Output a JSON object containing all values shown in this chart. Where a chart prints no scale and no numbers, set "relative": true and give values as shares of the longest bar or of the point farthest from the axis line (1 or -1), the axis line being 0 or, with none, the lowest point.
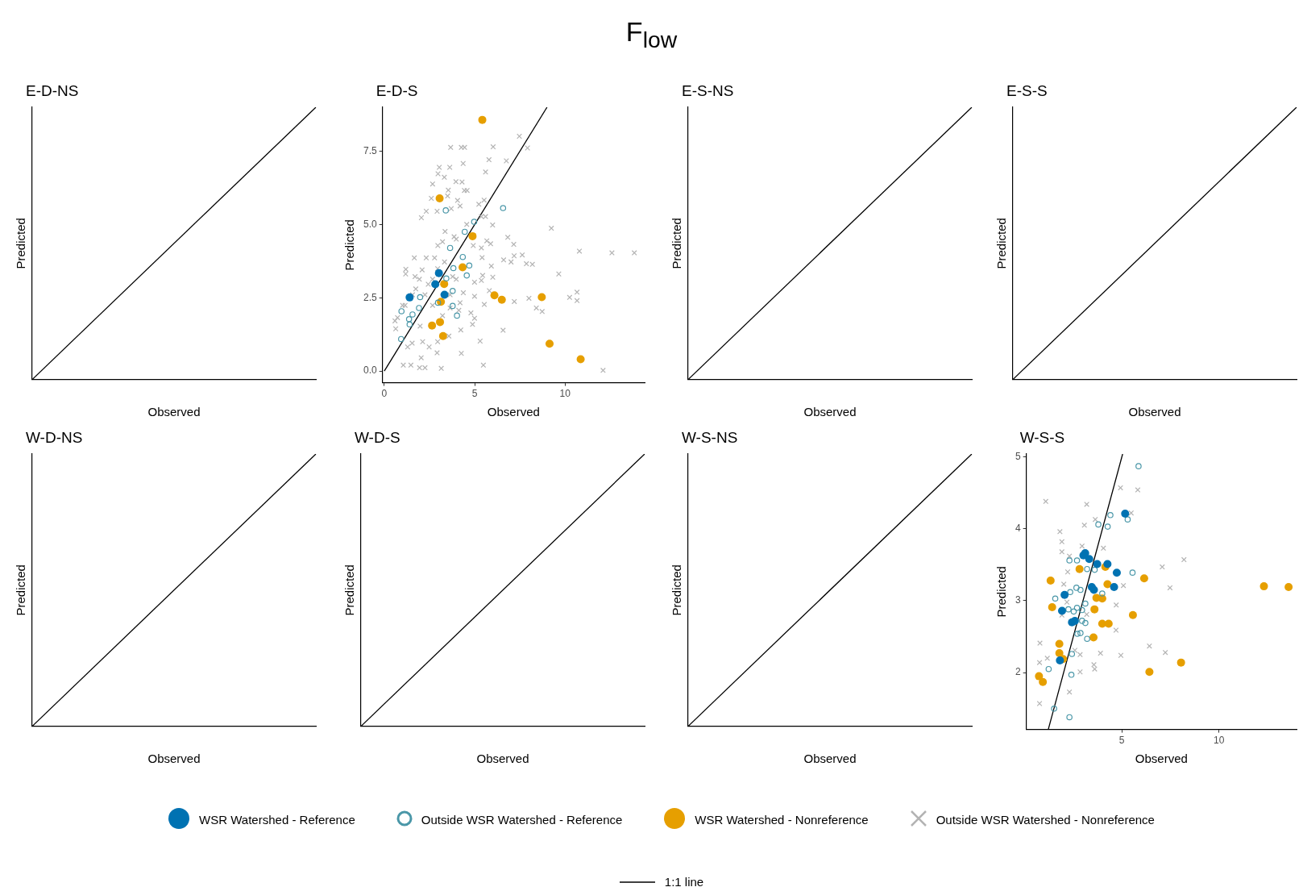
{
  "chart_data": [
    {
      "type": "line",
      "title": "E-D-NS",
      "xlabel": "Observed",
      "ylabel": "Predicted",
      "relative": true,
      "legend": "bottom",
      "annotations": [
        "F$_{low}$"
      ],
      "categories": [
        null,
        null
      ],
      "series": [
        {
          "name": "1:1 line",
          "color": "#000000",
          "marker": "none",
          "values": [
            0,
            1
          ]
        }
      ]
    },
    {
      "type": "scatter",
      "title": "E-D-S",
      "xlabel": "Observed",
      "ylabel": "Predicted",
      "legend": "bottom",
      "xlim": [
        -0.1,
        14.4
      ],
      "ylim": [
        -0.4,
        9.0
      ],
      "xticks": [
        0,
        5,
        10
      ],
      "yticks": [
        {
          "value": 0,
          "label": "0.0"
        },
        {
          "value": 2.5,
          "label": "2.5"
        },
        {
          "value": 5,
          "label": "5.0"
        },
        {
          "value": 7.5,
          "label": "7.5"
        }
      ],
      "series": [
        {
          "name": "WSR Watershed - Reference",
          "color": "#0072b2",
          "marker": "circle",
          "x": [
            1.4,
            3.02,
            2.82,
            3.33
          ],
          "values": [
            2.51,
            3.34,
            2.96,
            2.6
          ]
        },
        {
          "name": "Outside WSR Watershed - Reference",
          "color": "#4a97a8",
          "marker": "circle-open",
          "x": [
            3.4,
            6.57,
            4.97,
            4.45,
            3.64,
            4.34,
            4.7,
            3.82,
            4.56,
            3.43,
            1.98,
            0.95,
            1.56,
            1.37,
            1.92,
            0.93,
            3.78,
            3.78,
            4.02,
            2.97,
            1.4
          ],
          "values": [
            5.48,
            5.56,
            5.09,
            4.75,
            4.2,
            3.89,
            3.6,
            3.51,
            3.26,
            3.16,
            2.52,
            2.04,
            1.93,
            1.77,
            2.15,
            1.09,
            2.73,
            2.22,
            1.89,
            2.33,
            1.59
          ]
        },
        {
          "name": "WSR Watershed - Nonreference",
          "color": "#e69f00",
          "marker": "circle",
          "x": [
            5.42,
            3.06,
            4.88,
            4.33,
            3.31,
            3.13,
            6.09,
            6.5,
            8.71,
            2.64,
            3.08,
            3.25,
            9.14,
            10.86
          ],
          "values": [
            8.57,
            5.89,
            4.6,
            3.54,
            2.97,
            2.36,
            2.58,
            2.43,
            2.52,
            1.55,
            1.67,
            1.19,
            0.93,
            0.4
          ]
        },
        {
          "name": "Outside WSR Watershed - Nonreference",
          "color": "#b3b3b3",
          "marker": "cross",
          "x": [
            3.67,
            4.26,
            4.44,
            6.02,
            7.47,
            7.92,
            5.79,
            6.75,
            4.36,
            5.6,
            3.04,
            3.62,
            2.97,
            3.32,
            3.96,
            4.3,
            2.67,
            3.54,
            4.43,
            4.58,
            3.5,
            2.6,
            4.05,
            5.52,
            5.23,
            4.19,
            2.32,
            2.92,
            3.7,
            2.05,
            5.37,
            5.6,
            4.56,
            5.99,
            9.24,
            3.36,
            3.86,
            3.98,
            3.22,
            5.67,
            6.83,
            2.96,
            4.92,
            5.88,
            7.16,
            5.37,
            10.79,
            12.59,
            13.83,
            1.66,
            2.32,
            2.78,
            5.41,
            7.63,
            7.18,
            6.6,
            7.01,
            7.86,
            8.19,
            5.92,
            1.19,
            3.33,
            2.09,
            9.65,
            1.18,
            1.94,
            5.44,
            6.0,
            5.37,
            4.99,
            2.43,
            1.74,
            5.81,
            4.37,
            4.99,
            8.0,
            10.25,
            10.66,
            10.66,
            7.19,
            5.53,
            8.41,
            8.73,
            1.15,
            0.73,
            0.63,
            4.79,
            4.88,
            4.99,
            5.3,
            6.57,
            4.23,
            3.57,
            1.54,
            2.12,
            2.48,
            2.95,
            4.26,
            2.04,
            2.92,
            1.05,
            1.47,
            1.95,
            2.25,
            3.15,
            5.48,
            12.1,
            1.7,
            2.25,
            2.67,
            3.64,
            3.98,
            4.19,
            3.64,
            1.56,
            2.67,
            3.22,
            1.98,
            4.12,
            2.95,
            3.78,
            1.01,
            0.59,
            1.29
          ],
          "values": [
            7.63,
            7.63,
            7.63,
            7.65,
            8.01,
            7.61,
            7.21,
            7.17,
            7.08,
            6.79,
            6.95,
            6.95,
            6.73,
            6.61,
            6.46,
            6.45,
            6.38,
            6.17,
            6.16,
            6.16,
            5.97,
            5.89,
            5.82,
            5.83,
            5.69,
            5.63,
            5.45,
            5.45,
            5.54,
            5.23,
            5.27,
            5.27,
            5.0,
            4.98,
            4.87,
            4.76,
            4.58,
            4.5,
            4.41,
            4.44,
            4.56,
            4.28,
            4.28,
            4.34,
            4.32,
            4.2,
            4.09,
            4.03,
            4.03,
            3.86,
            3.86,
            3.86,
            3.87,
            3.96,
            3.93,
            3.79,
            3.72,
            3.66,
            3.64,
            3.58,
            3.47,
            3.72,
            3.45,
            3.31,
            3.31,
            3.13,
            3.26,
            3.2,
            3.09,
            3.03,
            2.96,
            2.8,
            2.74,
            2.67,
            2.55,
            2.48,
            2.51,
            2.69,
            2.4,
            2.37,
            2.27,
            2.15,
            2.03,
            2.24,
            1.82,
            1.44,
            1.98,
            1.59,
            1.8,
            1.02,
            1.39,
            1.4,
            1.19,
            0.95,
            1.0,
            0.82,
            1.0,
            0.6,
            0.45,
            0.62,
            0.2,
            0.2,
            0.11,
            0.11,
            0.09,
            0.2,
            0.02,
            3.22,
            2.6,
            3.13,
            2.6,
            3.13,
            2.33,
            2.15,
            2.6,
            2.24,
            1.89,
            1.53,
            2.07,
            3.49,
            3.22,
            2.24,
            1.71,
            0.82
          ]
        },
        {
          "name": "1:1 line",
          "type": "line",
          "color": "#000000",
          "marker": "none",
          "x": [
            0,
            9
          ],
          "values": [
            0,
            9
          ]
        }
      ]
    },
    {
      "type": "line",
      "title": "E-S-NS",
      "xlabel": "Observed",
      "ylabel": "Predicted",
      "relative": true,
      "legend": "bottom",
      "categories": [
        null,
        null
      ],
      "series": [
        {
          "name": "1:1 line",
          "color": "#000000",
          "marker": "none",
          "values": [
            0,
            1
          ]
        }
      ]
    },
    {
      "type": "line",
      "title": "E-S-S",
      "xlabel": "Observed",
      "ylabel": "Predicted",
      "relative": true,
      "legend": "bottom",
      "categories": [
        null,
        null
      ],
      "series": [
        {
          "name": "1:1 line",
          "color": "#000000",
          "marker": "none",
          "values": [
            0,
            1
          ]
        }
      ]
    },
    {
      "type": "line",
      "title": "W-D-NS",
      "xlabel": "Observed",
      "ylabel": "Predicted",
      "relative": true,
      "legend": "bottom",
      "categories": [
        null,
        null
      ],
      "series": [
        {
          "name": "1:1 line",
          "color": "#000000",
          "marker": "none",
          "values": [
            0,
            1
          ]
        }
      ]
    },
    {
      "type": "line",
      "title": "W-D-S",
      "xlabel": "Observed",
      "ylabel": "Predicted",
      "relative": true,
      "legend": "bottom",
      "categories": [
        null,
        null
      ],
      "series": [
        {
          "name": "1:1 line",
          "color": "#000000",
          "marker": "none",
          "values": [
            0,
            1
          ]
        }
      ]
    },
    {
      "type": "line",
      "title": "W-S-NS",
      "xlabel": "Observed",
      "ylabel": "Predicted",
      "relative": true,
      "legend": "bottom",
      "categories": [
        null,
        null
      ],
      "series": [
        {
          "name": "1:1 line",
          "color": "#000000",
          "marker": "none",
          "values": [
            0,
            1
          ]
        }
      ]
    },
    {
      "type": "scatter",
      "title": "W-S-S",
      "xlabel": "Observed",
      "ylabel": "Predicted",
      "legend": "bottom",
      "xlim": [
        0.08,
        14.0
      ],
      "ylim": [
        1.21,
        5.04
      ],
      "xticks": [
        5,
        10
      ],
      "yticks": [
        2,
        3,
        4,
        5
      ],
      "series": [
        {
          "name": "WSR Watershed - Reference",
          "color": "#0072b2",
          "marker": "circle",
          "x": [
            5.17,
            3.11,
            3.02,
            3.32,
            3.73,
            4.26,
            4.74,
            3.45,
            3.56,
            4.6,
            2.05,
            1.92,
            2.43,
            2.58,
            1.81
          ],
          "values": [
            4.21,
            3.66,
            3.63,
            3.58,
            3.51,
            3.51,
            3.39,
            3.19,
            3.15,
            3.19,
            3.08,
            2.86,
            2.7,
            2.72,
            2.17
          ]
        },
        {
          "name": "Outside WSR Watershed - Reference",
          "color": "#4a97a8",
          "marker": "circle-open",
          "x": [
            5.86,
            5.3,
            4.41,
            3.79,
            4.27,
            5.55,
            2.3,
            2.69,
            3.21,
            3.6,
            2.34,
            2.66,
            2.87,
            1.57,
            3.99,
            3.12,
            2.25,
            2.69,
            2.52,
            2.95,
            3.12,
            2.95,
            2.71,
            2.87,
            3.21,
            2.43,
            1.23,
            2.4,
            1.51,
            2.3
          ],
          "values": [
            4.87,
            4.13,
            4.19,
            4.06,
            4.03,
            3.39,
            3.56,
            3.56,
            3.44,
            3.43,
            3.12,
            3.18,
            3.15,
            3.03,
            3.1,
            2.96,
            2.88,
            2.9,
            2.85,
            2.87,
            2.69,
            2.72,
            2.54,
            2.55,
            2.47,
            2.26,
            2.05,
            1.97,
            1.5,
            1.38
          ]
        },
        {
          "name": "WSR Watershed - Nonreference",
          "color": "#e69f00",
          "marker": "circle",
          "x": [
            12.32,
            13.59,
            1.33,
            2.82,
            4.15,
            6.15,
            4.26,
            3.69,
            3.99,
            1.41,
            3.59,
            5.57,
            3.99,
            4.32,
            3.54,
            1.78,
            1.78,
            1.97,
            8.05,
            6.42,
            0.73,
            0.93
          ],
          "values": [
            3.2,
            3.19,
            3.28,
            3.44,
            3.47,
            3.31,
            3.23,
            3.04,
            3.03,
            2.91,
            2.88,
            2.8,
            2.68,
            2.68,
            2.49,
            2.4,
            2.27,
            2.19,
            2.14,
            2.01,
            1.95,
            1.87
          ]
        },
        {
          "name": "Outside WSR Watershed - Nonreference",
          "color": "#b3b3b3",
          "marker": "cross",
          "x": [
            1.08,
            4.93,
            5.82,
            3.19,
            5.48,
            3.63,
            3.07,
            1.81,
            1.91,
            1.91,
            4.05,
            2.95,
            2.3,
            8.2,
            7.08,
            2.21,
            2.01,
            5.08,
            7.48,
            4.71,
            1.91,
            4.7,
            6.42,
            7.24,
            0.78,
            0.76,
            1.16,
            2.85,
            3.9,
            4.95,
            3.56,
            3.6,
            2.85,
            2.3,
            0.76,
            2.58,
            3.19,
            2.17
          ],
          "values": [
            4.38,
            4.57,
            4.54,
            4.34,
            4.22,
            4.13,
            4.05,
            3.96,
            3.82,
            3.68,
            3.73,
            3.76,
            3.62,
            3.57,
            3.47,
            3.4,
            3.23,
            3.21,
            3.18,
            2.94,
            2.8,
            2.59,
            2.37,
            2.28,
            2.41,
            2.14,
            2.2,
            2.25,
            2.27,
            2.24,
            2.11,
            2.05,
            2.01,
            1.73,
            1.57,
            2.31,
            2.81,
            2.98
          ]
        },
        {
          "name": "1:1 line",
          "type": "line",
          "color": "#000000",
          "marker": "none",
          "x": [
            1.21,
            5.04
          ],
          "values": [
            1.21,
            5.04
          ]
        }
      ]
    }
  ]
}
